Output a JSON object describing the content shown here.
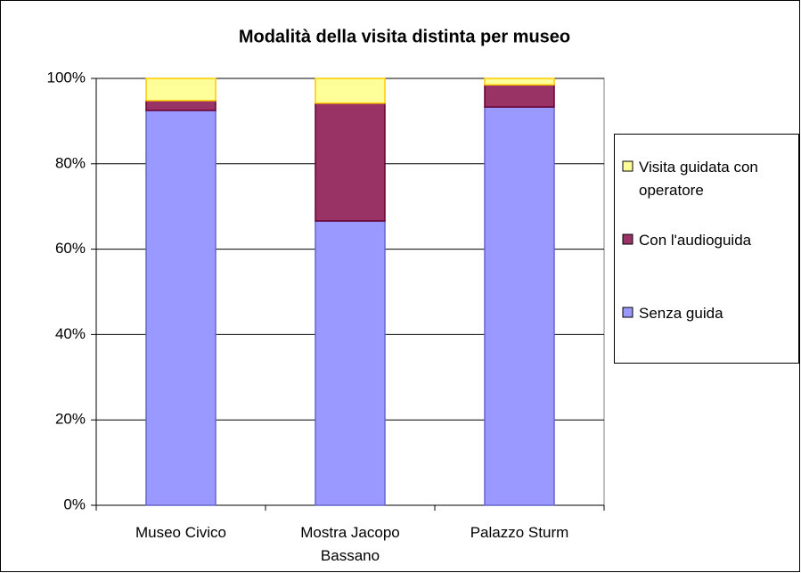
{
  "chart_data": {
    "type": "stacked_bar",
    "title": "Modalità della visita distinta per museo",
    "categories": [
      "Museo Civico",
      "Mostra Jacopo Bassano",
      "Palazzo Sturm"
    ],
    "series": [
      {
        "name": "Senza guida",
        "color": "#9999ff",
        "values": [
          92.5,
          66.6,
          93.3
        ]
      },
      {
        "name": "Con l'audioguida",
        "color": "#993366",
        "values": [
          2.3,
          27.6,
          5.2
        ]
      },
      {
        "name": "Visita guidata con operatore",
        "color": "#ffff99",
        "values": [
          5.2,
          5.8,
          1.5
        ]
      }
    ],
    "ylim": [
      0,
      100
    ],
    "yticks": [
      {
        "value": 0,
        "label": "0%"
      },
      {
        "value": 20,
        "label": "20%"
      },
      {
        "value": 40,
        "label": "40%"
      },
      {
        "value": 60,
        "label": "60%"
      },
      {
        "value": 80,
        "label": "80%"
      },
      {
        "value": 100,
        "label": "100%"
      }
    ],
    "grid": true,
    "legend": "right"
  }
}
